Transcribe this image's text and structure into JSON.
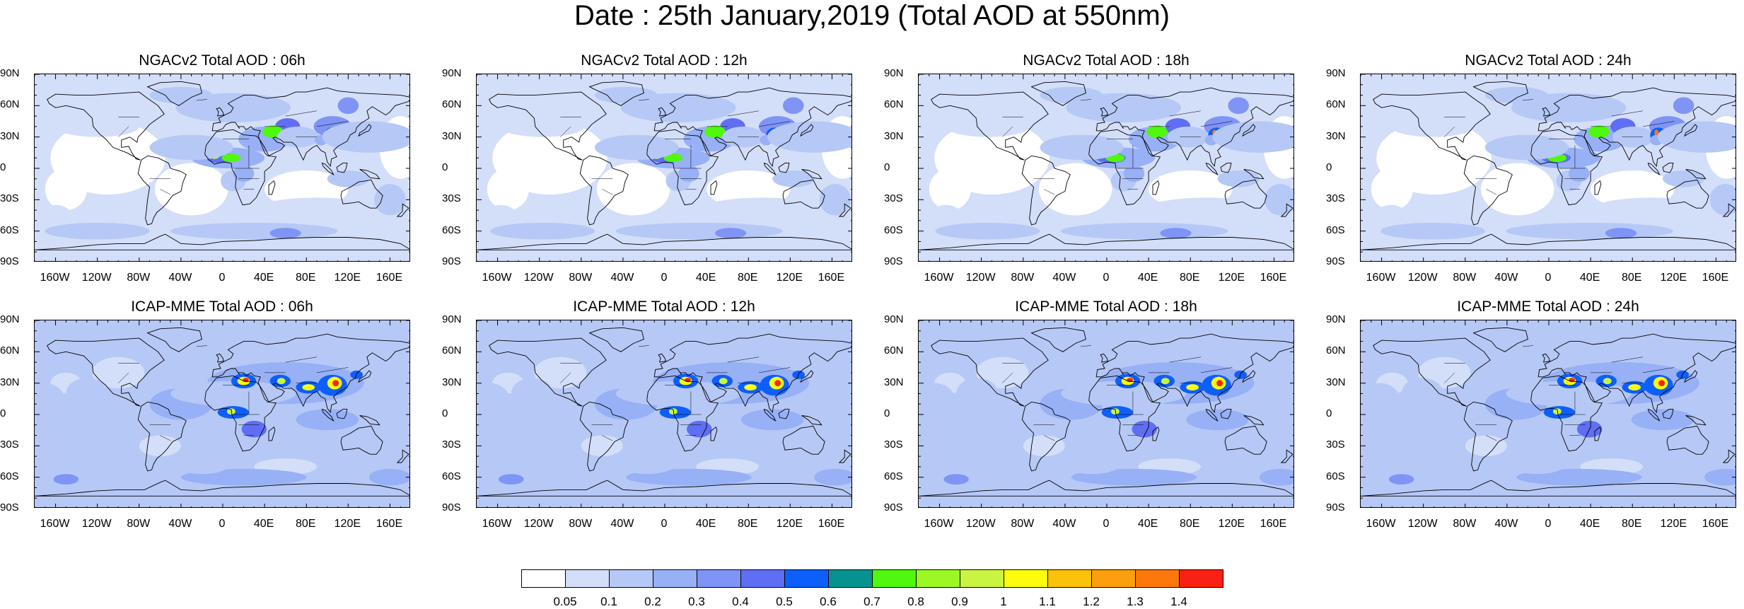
{
  "title": "Date : 25th January,2019 (Total AOD at 550nm)",
  "lat_labels": [
    "90N",
    "60N",
    "30N",
    "0",
    "30S",
    "60S",
    "90S"
  ],
  "lon_labels": [
    "160W",
    "120W",
    "80W",
    "40W",
    "0",
    "40E",
    "80E",
    "120E",
    "160E"
  ],
  "panels": [
    {
      "title": "NGACv2 Total AOD : 06h",
      "model": "NGACv2",
      "hour": "06h"
    },
    {
      "title": "NGACv2 Total AOD : 12h",
      "model": "NGACv2",
      "hour": "12h"
    },
    {
      "title": "NGACv2 Total AOD : 18h",
      "model": "NGACv2",
      "hour": "18h"
    },
    {
      "title": "NGACv2 Total AOD : 24h",
      "model": "NGACv2",
      "hour": "24h"
    },
    {
      "title": "ICAP-MME Total AOD : 06h",
      "model": "ICAP-MME",
      "hour": "06h"
    },
    {
      "title": "ICAP-MME Total AOD : 12h",
      "model": "ICAP-MME",
      "hour": "12h"
    },
    {
      "title": "ICAP-MME Total AOD : 18h",
      "model": "ICAP-MME",
      "hour": "18h"
    },
    {
      "title": "ICAP-MME Total AOD : 24h",
      "model": "ICAP-MME",
      "hour": "24h"
    }
  ],
  "colorbar": {
    "labels": [
      "0.05",
      "0.1",
      "0.2",
      "0.3",
      "0.4",
      "0.5",
      "0.6",
      "0.7",
      "0.8",
      "0.9",
      "1",
      "1.1",
      "1.2",
      "1.3",
      "1.4"
    ],
    "colors": [
      "#ffffff",
      "#d3def9",
      "#b6c8f6",
      "#97b0f6",
      "#7f94f5",
      "#5f6ef3",
      "#0c5ffa",
      "#06938f",
      "#4ff80d",
      "#9cf825",
      "#c9f542",
      "#fcfc0c",
      "#fcc10a",
      "#fba00c",
      "#fc780d",
      "#fa2014"
    ]
  },
  "features": {
    "background": "#ffffff",
    "ocean_background": "#d3def9",
    "land_outline": "#000000"
  }
}
